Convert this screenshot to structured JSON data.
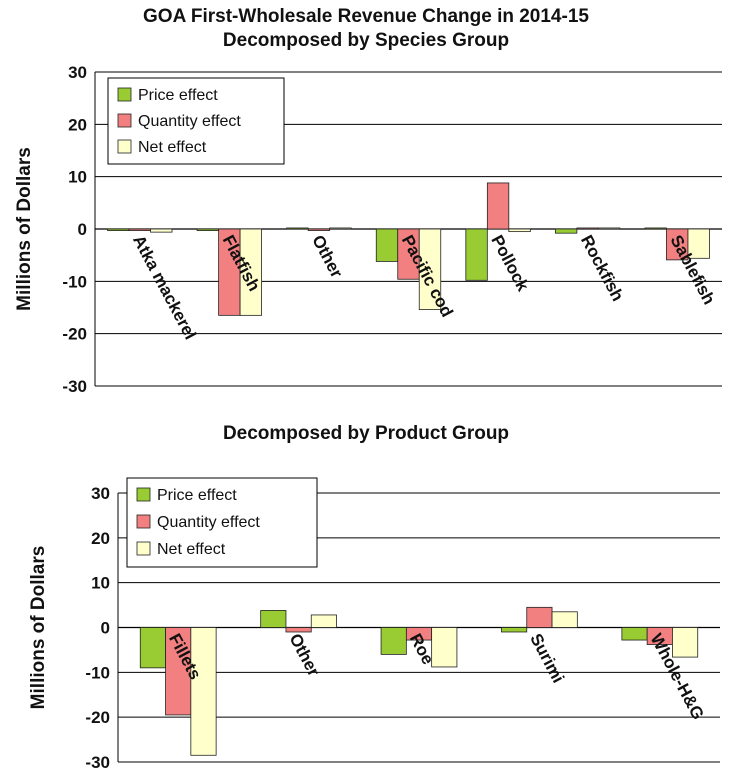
{
  "titles": {
    "line1": "GOA First-Wholesale Revenue Change in 2014-15",
    "line2": "Decomposed by Species Group",
    "line3": "Decomposed by Product Group"
  },
  "colors": {
    "price": "#99cc33",
    "quantity": "#f28080",
    "net": "#ffffcc",
    "grid": "#000000"
  },
  "chart_data": [
    {
      "type": "bar",
      "title": "Decomposed by Species Group",
      "ylabel": "Millions  of Dollars",
      "ylim": [
        -30,
        30
      ],
      "yticks": [
        -30,
        -20,
        -10,
        0,
        10,
        20,
        30
      ],
      "grid": true,
      "legend_position": "top-left",
      "categories": [
        "Atka mackerel",
        "Flatfish",
        "Other",
        "Pacific cod",
        "Pollock",
        "Rockfish",
        "Sablefish"
      ],
      "series": [
        {
          "name": "Price effect",
          "values": [
            -0.3,
            -0.3,
            0.2,
            -6.2,
            -9.8,
            -0.8,
            0.2
          ]
        },
        {
          "name": "Quantity effect",
          "values": [
            -0.3,
            -16.5,
            -0.3,
            -9.6,
            8.8,
            0.2,
            -5.9
          ]
        },
        {
          "name": "Net effect",
          "values": [
            -0.6,
            -16.5,
            0.2,
            -15.4,
            -0.5,
            0.2,
            -5.6
          ]
        }
      ]
    },
    {
      "type": "bar",
      "title": "Decomposed by Product Group",
      "ylabel": "Millions  of Dollars",
      "ylim": [
        -30,
        30
      ],
      "yticks": [
        -30,
        -20,
        -10,
        0,
        10,
        20,
        30
      ],
      "grid": true,
      "legend_position": "top-left",
      "categories": [
        "Fillets",
        "Other",
        "Roe",
        "Surimi",
        "Whole-H&G"
      ],
      "series": [
        {
          "name": "Price effect",
          "values": [
            -9.0,
            3.8,
            -6.0,
            -1.0,
            -2.8
          ]
        },
        {
          "name": "Quantity effect",
          "values": [
            -19.5,
            -1.0,
            -2.8,
            4.5,
            -3.8
          ]
        },
        {
          "name": "Net effect",
          "values": [
            -28.5,
            2.8,
            -8.8,
            3.5,
            -6.6
          ]
        }
      ]
    }
  ]
}
